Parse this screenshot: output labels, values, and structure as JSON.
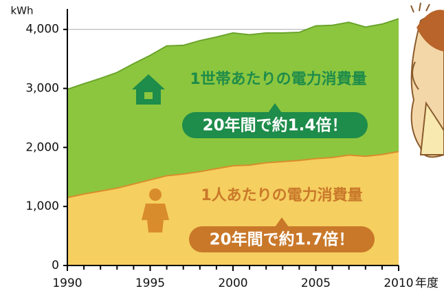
{
  "chart_data": {
    "type": "area",
    "y_unit": "kWh",
    "x_unit": "年度",
    "x": [
      1990,
      1991,
      1992,
      1993,
      1994,
      1995,
      1996,
      1997,
      1998,
      1999,
      2000,
      2001,
      2002,
      2003,
      2004,
      2005,
      2006,
      2007,
      2008,
      2009,
      2010
    ],
    "series": [
      {
        "name": "1世帯あたりの電力消費量",
        "color": "#8cc63f",
        "line_color": "#6aa42a",
        "values": [
          2985,
          3080,
          3170,
          3270,
          3420,
          3560,
          3720,
          3730,
          3810,
          3870,
          3940,
          3910,
          3940,
          3940,
          3950,
          4060,
          4070,
          4120,
          4040,
          4090,
          4180
        ]
      },
      {
        "name": "1人あたりの電力消費量",
        "color": "#f5cf5f",
        "line_color": "#d98c2b",
        "values": [
          1150,
          1210,
          1260,
          1310,
          1380,
          1450,
          1520,
          1550,
          1590,
          1640,
          1690,
          1700,
          1740,
          1760,
          1780,
          1810,
          1830,
          1870,
          1850,
          1880,
          1930
        ]
      }
    ],
    "annotations": [
      {
        "text": "20年間で約1.4倍！",
        "color": "#1e8c4a"
      },
      {
        "text": "20年間で約1.7倍！",
        "color": "#c9782a"
      }
    ],
    "xlim": [
      1990,
      2010
    ],
    "xticks": [
      1990,
      1995,
      2000,
      2005,
      2010
    ],
    "minor_xticks": [
      1991,
      1992,
      1993,
      1994,
      1996,
      1997,
      1998,
      1999,
      2001,
      2002,
      2003,
      2004,
      2006,
      2007,
      2008,
      2009
    ],
    "ylim": [
      0,
      4300
    ],
    "yticks": [
      0,
      {
        "value": 1000,
        "label": "1,000"
      },
      {
        "value": 2000,
        "label": "2,000"
      },
      {
        "value": 3000,
        "label": "3,000"
      },
      {
        "value": 4000,
        "label": "4,000"
      }
    ],
    "grid": true
  }
}
